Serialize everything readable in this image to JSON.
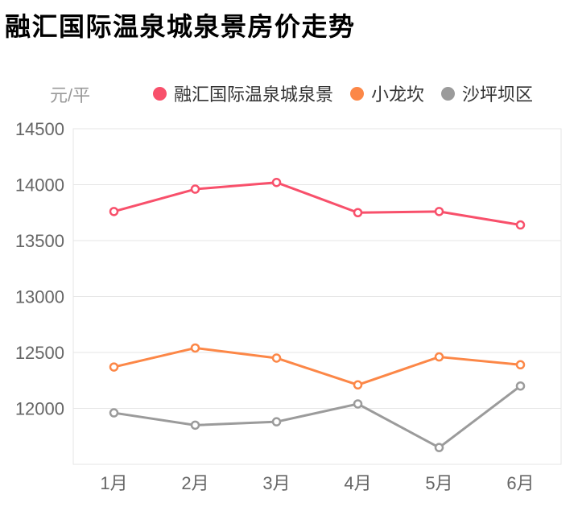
{
  "page": {
    "title": "融汇国际温泉城泉景房价走势"
  },
  "chart_data": {
    "type": "line",
    "title": "融汇国际温泉城泉景房价走势",
    "unit_label": "元/平",
    "xlabel": "",
    "ylabel": "元/平",
    "categories": [
      "1月",
      "2月",
      "3月",
      "4月",
      "5月",
      "6月"
    ],
    "series": [
      {
        "name": "融汇国际温泉城泉景",
        "color": "#f8506b",
        "values": [
          13760,
          13960,
          14020,
          13750,
          13760,
          13640
        ]
      },
      {
        "name": "小龙坎",
        "color": "#fc8747",
        "values": [
          12370,
          12540,
          12450,
          12210,
          12460,
          12390
        ]
      },
      {
        "name": "沙坪坝区",
        "color": "#9b9b9b",
        "values": [
          11960,
          11850,
          11880,
          12040,
          11650,
          12200
        ]
      }
    ],
    "ylim": [
      11500,
      14500
    ],
    "yticks": [
      12000,
      12500,
      13000,
      13500,
      14000,
      14500
    ],
    "grid": true,
    "legend_position": "top",
    "marker": "hollow-circle",
    "colors": {
      "gridline": "#e6e6e6",
      "axis_label": "#666666",
      "unit_label": "#999999",
      "legend_text": "#333333",
      "background": "#ffffff"
    }
  }
}
